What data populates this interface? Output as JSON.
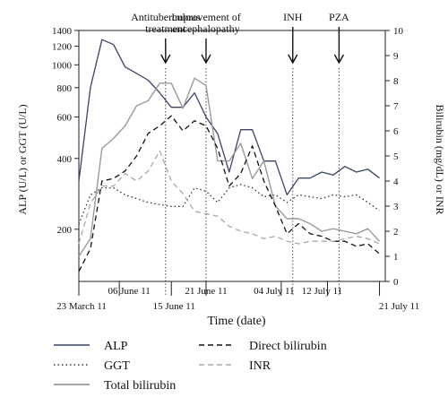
{
  "chart_data": {
    "type": "line",
    "xlabel": "Time (date)",
    "ylabel_left": "ALP (U/L) or GGT (U/L)",
    "ylabel_right": "Bilirubin (mg/dL) or INR",
    "y_left": {
      "scale": "log",
      "ylim": [
        120,
        1400
      ],
      "ticks": [
        200,
        400,
        600,
        800,
        1000,
        1200,
        1400
      ]
    },
    "y_right": {
      "scale": "linear",
      "ylim": [
        0,
        10
      ],
      "ticks": [
        0,
        1,
        2,
        3,
        4,
        5,
        6,
        7,
        8,
        9,
        10
      ]
    },
    "x_ticks": [
      {
        "label": "23 March 11",
        "day": 0,
        "row": 2
      },
      {
        "label": "06 June 11",
        "day": 7,
        "row": 1
      },
      {
        "label": "15 June 11",
        "day": 16,
        "row": 2
      },
      {
        "label": "21 June 11",
        "day": 22,
        "row": 1
      },
      {
        "label": "04 July 11",
        "day": 35,
        "row": 1
      },
      {
        "label": "12 July 11",
        "day": 43,
        "row": 1
      },
      {
        "label": "21 July 11",
        "day": 52,
        "row": 2
      }
    ],
    "x_range": [
      0,
      53
    ],
    "annotations": [
      {
        "label": "Antituberculous treatment",
        "lines": [
          "Antituberculous",
          "treatment"
        ],
        "day": 15
      },
      {
        "label": "Improvement of encephalopathy",
        "lines": [
          "Improvement of",
          "encephalopathy"
        ],
        "day": 22
      },
      {
        "label": "INH",
        "lines": [
          "INH"
        ],
        "day": 37
      },
      {
        "label": "PZA",
        "lines": [
          "PZA"
        ],
        "day": 45
      }
    ],
    "series": [
      {
        "name": "ALP",
        "axis": "left",
        "color": "#3a4566",
        "style": "solid",
        "width": 1.3,
        "x": [
          0,
          2,
          4,
          6,
          8,
          10,
          12,
          14,
          16,
          18,
          20,
          22,
          24,
          26,
          28,
          30,
          32,
          34,
          36,
          38,
          40,
          42,
          44,
          46,
          48,
          50,
          52
        ],
        "y": [
          320,
          800,
          1280,
          1220,
          980,
          920,
          860,
          760,
          660,
          660,
          760,
          600,
          510,
          350,
          530,
          530,
          390,
          390,
          280,
          330,
          330,
          350,
          340,
          370,
          350,
          360,
          330
        ]
      },
      {
        "name": "GGT",
        "axis": "left",
        "color": "#333333",
        "style": "dotted",
        "width": 1.3,
        "x": [
          0,
          2,
          4,
          6,
          8,
          10,
          12,
          14,
          16,
          18,
          20,
          22,
          24,
          26,
          28,
          30,
          32,
          34,
          36,
          38,
          40,
          42,
          44,
          46,
          48,
          50,
          52
        ],
        "y": [
          210,
          280,
          300,
          300,
          280,
          270,
          260,
          255,
          250,
          250,
          300,
          290,
          260,
          300,
          310,
          300,
          275,
          280,
          260,
          280,
          275,
          270,
          280,
          275,
          280,
          260,
          240
        ]
      },
      {
        "name": "Total bilirubin",
        "axis": "right",
        "color": "#9a9a9a",
        "style": "solid",
        "width": 1.4,
        "x": [
          0,
          2,
          4,
          6,
          8,
          10,
          12,
          14,
          16,
          18,
          20,
          22,
          24,
          26,
          28,
          30,
          32,
          34,
          36,
          38,
          40,
          42,
          44,
          46,
          48,
          50,
          52
        ],
        "y": [
          1.0,
          1.7,
          5.3,
          5.7,
          6.2,
          7.0,
          7.2,
          7.9,
          7.9,
          6.9,
          8.1,
          7.8,
          4.8,
          4.8,
          5.5,
          4.1,
          4.8,
          3.0,
          2.5,
          2.5,
          2.3,
          2.0,
          2.1,
          2.0,
          1.9,
          2.1,
          1.6
        ]
      },
      {
        "name": "Direct bilirubin",
        "axis": "right",
        "color": "#111111",
        "style": "dashed",
        "width": 1.3,
        "x": [
          0,
          2,
          4,
          6,
          8,
          10,
          12,
          14,
          16,
          18,
          20,
          22,
          24,
          26,
          28,
          30,
          32,
          34,
          36,
          38,
          40,
          42,
          44,
          46,
          48,
          50,
          52
        ],
        "y": [
          0.4,
          1.3,
          4.0,
          4.1,
          4.4,
          5.0,
          5.9,
          6.2,
          6.6,
          6.0,
          6.4,
          6.2,
          5.3,
          3.8,
          4.3,
          5.4,
          4.0,
          3.0,
          1.9,
          2.3,
          1.9,
          1.8,
          1.6,
          1.6,
          1.4,
          1.5,
          1.1
        ]
      },
      {
        "name": "INR",
        "axis": "right",
        "color": "#a8a8a8",
        "style": "dashed",
        "width": 1.3,
        "x": [
          0,
          2,
          4,
          6,
          8,
          10,
          12,
          14,
          16,
          18,
          20,
          22,
          24,
          26,
          28,
          30,
          32,
          34,
          36,
          38,
          40,
          42,
          44,
          46,
          48,
          50,
          52
        ],
        "y": [
          1.5,
          3.1,
          3.8,
          3.8,
          4.3,
          4.0,
          4.4,
          5.2,
          4.0,
          3.5,
          2.8,
          2.7,
          2.6,
          2.2,
          2.0,
          1.9,
          1.7,
          1.8,
          1.6,
          1.5,
          1.6,
          1.6,
          1.6,
          1.7,
          1.8,
          1.7,
          1.5
        ]
      }
    ],
    "legend": {
      "placement": "bottom",
      "order": [
        "ALP",
        "GGT",
        "Total bilirubin",
        "Direct bilirubin",
        "INR"
      ]
    }
  }
}
